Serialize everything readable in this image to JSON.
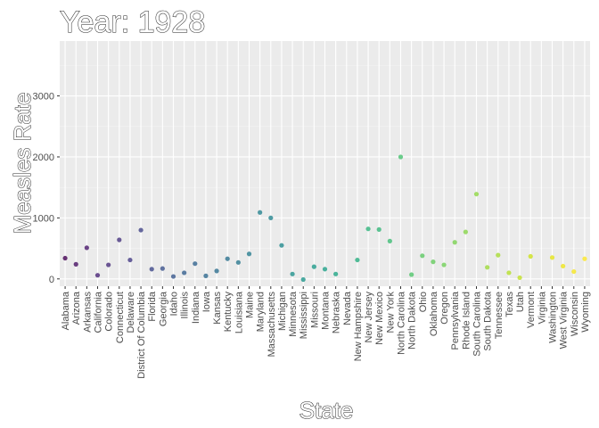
{
  "chart_data": {
    "type": "scatter",
    "title": "Year: 1928",
    "xlabel": "State",
    "ylabel": "Measles Rate",
    "ylim": [
      -120,
      3900
    ],
    "yticks": [
      0,
      1000,
      2000,
      3000
    ],
    "ytick_labels": [
      "0",
      "1000",
      "2000",
      "3000"
    ],
    "grid": true,
    "categories": [
      "Alabama",
      "Arizona",
      "Arkansas",
      "California",
      "Colorado",
      "Connecticut",
      "Delaware",
      "District Of Columbia",
      "Florida",
      "Georgia",
      "Idaho",
      "Illinois",
      "Indiana",
      "Iowa",
      "Kansas",
      "Kentucky",
      "Louisiana",
      "Maine",
      "Maryland",
      "Massachusetts",
      "Michigan",
      "Minnesota",
      "Mississippi",
      "Missouri",
      "Montana",
      "Nebraska",
      "Nevada",
      "New Hampshire",
      "New Jersey",
      "New Mexico",
      "New York",
      "North Carolina",
      "North Dakota",
      "Ohio",
      "Oklahoma",
      "Oregon",
      "Pennsylvania",
      "Rhode Island",
      "South Carolina",
      "South Dakota",
      "Tennessee",
      "Texas",
      "Utah",
      "Vermont",
      "Virginia",
      "Washington",
      "West Virginia",
      "Wisconsin",
      "Wyoming"
    ],
    "values": [
      340,
      240,
      510,
      60,
      230,
      640,
      310,
      800,
      160,
      170,
      40,
      100,
      250,
      50,
      130,
      330,
      270,
      410,
      1090,
      1000,
      550,
      80,
      -10,
      200,
      160,
      80,
      null,
      310,
      820,
      810,
      620,
      2000,
      70,
      380,
      280,
      230,
      600,
      770,
      1390,
      190,
      390,
      100,
      20,
      370,
      null,
      350,
      210,
      120,
      330
    ],
    "point_colors": [
      "#440154",
      "#471063",
      "#48186a",
      "#482475",
      "#472d7b",
      "#46337e",
      "#443b84",
      "#414487",
      "#3e4989",
      "#3b528b",
      "#38588c",
      "#355f8d",
      "#32648e",
      "#306a8e",
      "#2e6f8e",
      "#2c728e",
      "#2a788e",
      "#287d8e",
      "#26828e",
      "#25858e",
      "#238a8d",
      "#21918c",
      "#1f968b",
      "#1f9a8a",
      "#1fa088",
      "#21a585",
      "#24aa83",
      "#28ae80",
      "#2fb47c",
      "#35b779",
      "#3dbc74",
      "#46c06f",
      "#50c46a",
      "#5cc863",
      "#65cb5e",
      "#70cf57",
      "#7ad151",
      "#86d549",
      "#90d743",
      "#9dd93b",
      "#a8db34",
      "#b5de2b",
      "#c0df25",
      "#cde11d",
      "#d8e219",
      "#e5e419",
      "#efe51c",
      "#f6e620",
      "#fde725"
    ],
    "colors": {
      "panel": "#ebebeb",
      "grid_major": "#ffffff",
      "grid_minor": "#f5f5f5",
      "axis_text": "#4d4d4d"
    }
  }
}
